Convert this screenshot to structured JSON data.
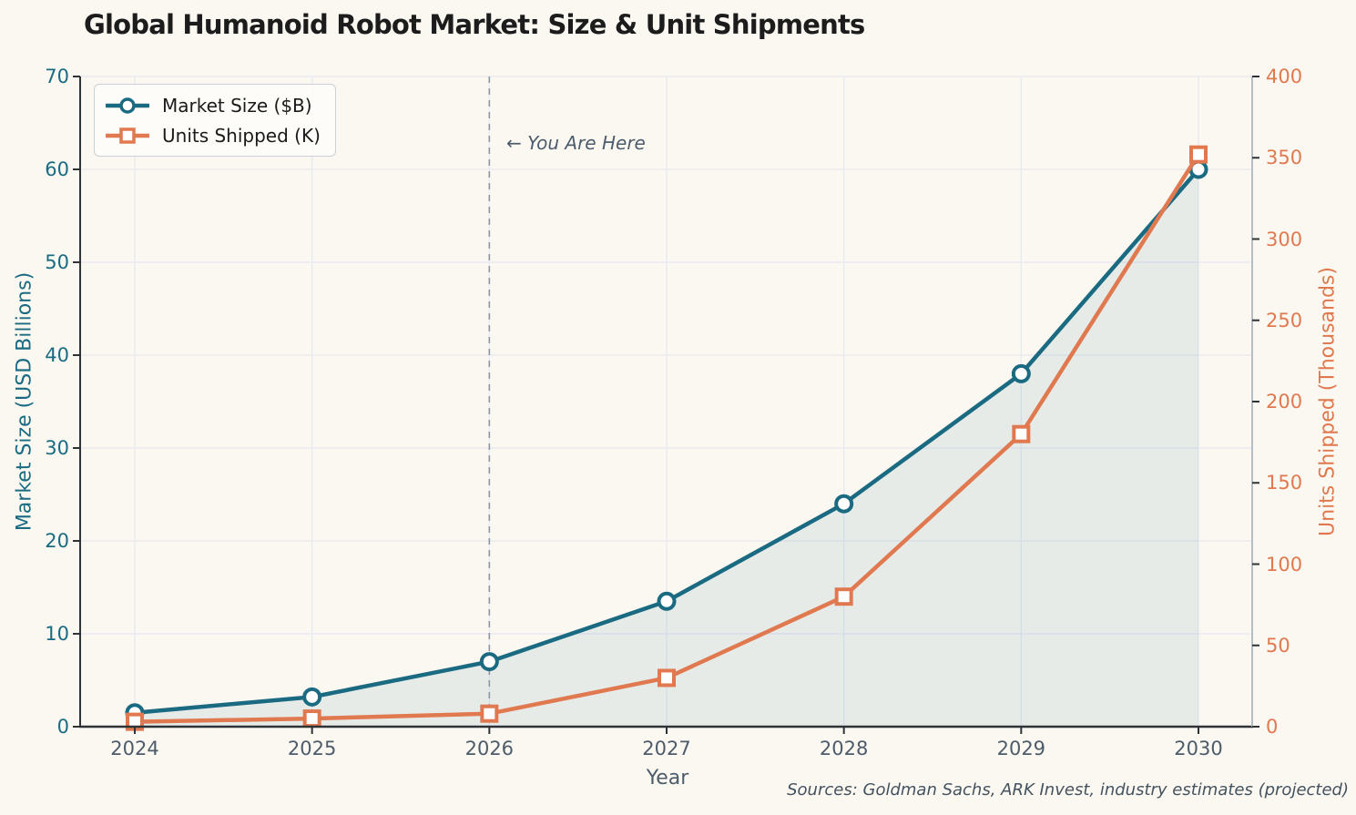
{
  "title": "Global Humanoid Robot Market: Size & Unit Shipments",
  "xlabel": "Year",
  "ylabel_left": "Market Size (USD Billions)",
  "ylabel_right": "Units Shipped (Thousands)",
  "annotation": "← You Are Here",
  "source_note": "Sources: Goldman Sachs, ARK Invest, industry estimates (projected)",
  "legend": {
    "position": "upper-left",
    "items": [
      "Market Size ($B)",
      "Units Shipped (K)"
    ]
  },
  "colors": {
    "market_line": "#1a6b82",
    "units_line": "#e0794f",
    "background": "#fbf8f1",
    "gridline": "#e9ebf0",
    "area_fill": "rgba(23,110,140,0.085)",
    "dashed_line": "#8e979e",
    "dark_spine": "#2e3338",
    "right_spine": "#b6bdc3",
    "slate_text": "#4d5c6b",
    "title_text": "#1c1c1c",
    "marker_fill": "#ffffff"
  },
  "chart_data": {
    "type": "line",
    "title": "Global Humanoid Robot Market: Size & Unit Shipments",
    "xlabel": "Year",
    "x": [
      2024,
      2025,
      2026,
      2027,
      2028,
      2029,
      2030
    ],
    "series": [
      {
        "name": "Market Size ($B)",
        "axis": "left",
        "marker": "circle",
        "color": "#1a6b82",
        "area_fill": true,
        "values": [
          1.5,
          3.2,
          7,
          13.5,
          24,
          38,
          60
        ]
      },
      {
        "name": "Units Shipped (K)",
        "axis": "right",
        "marker": "square",
        "color": "#e0794f",
        "area_fill": false,
        "values": [
          3,
          5,
          8,
          30,
          80,
          180,
          352
        ]
      }
    ],
    "ylabel_left": "Market Size (USD Billions)",
    "ylabel_right": "Units Shipped (Thousands)",
    "ylim_left": [
      0,
      70
    ],
    "ylim_right": [
      0,
      400
    ],
    "yticks_left": [
      0,
      10,
      20,
      30,
      40,
      50,
      60,
      70
    ],
    "yticks_right": [
      0,
      50,
      100,
      150,
      200,
      250,
      300,
      350,
      400
    ],
    "grid": true,
    "legend_position": "upper-left",
    "vline": {
      "x": 2026,
      "label": "← You Are Here",
      "style": "dashed"
    }
  }
}
